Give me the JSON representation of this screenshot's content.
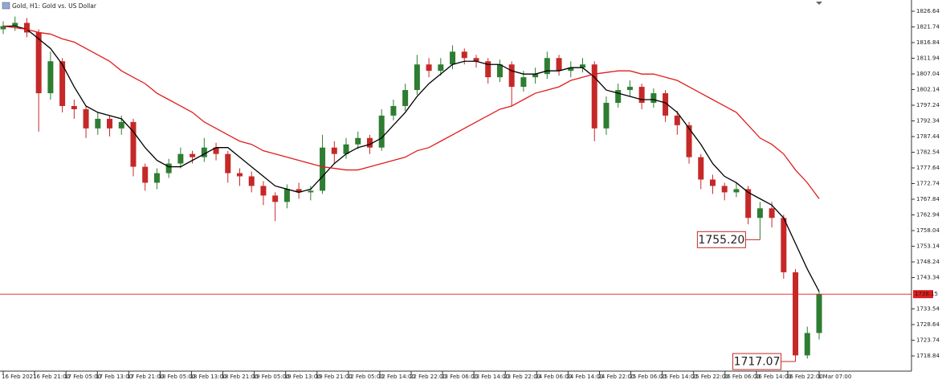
{
  "chart_data": {
    "type": "candlestick",
    "title": "Gold, H1: Gold vs. US Dollar",
    "xlabels": [
      "16 Feb 2021",
      "16 Feb 21:00",
      "17 Feb 05:00",
      "17 Feb 13:00",
      "17 Feb 21:00",
      "18 Feb 05:00",
      "18 Feb 13:00",
      "18 Feb 21:00",
      "19 Feb 05:00",
      "19 Feb 13:00",
      "19 Feb 21:00",
      "22 Feb 05:00",
      "22 Feb 14:00",
      "22 Feb 22:00",
      "23 Feb 06:00",
      "23 Feb 14:00",
      "23 Feb 22:00",
      "24 Feb 06:00",
      "24 Feb 14:00",
      "24 Feb 22:00",
      "25 Feb 06:00",
      "25 Feb 14:00",
      "25 Feb 22:00",
      "26 Feb 06:00",
      "26 Feb 14:00",
      "26 Feb 22:00",
      "1 Mar 07:00"
    ],
    "open": [
      1821,
      1822,
      1823,
      1820,
      1801,
      1811,
      1797,
      1796,
      1790,
      1793,
      1790,
      1792,
      1778,
      1773,
      1776,
      1779,
      1782,
      1781,
      1784,
      1782,
      1776,
      1775,
      1772,
      1769,
      1767,
      1771,
      1770,
      1770.5,
      1784,
      1782,
      1785,
      1787,
      1784,
      1794,
      1797,
      1802,
      1810,
      1808,
      1810,
      1814,
      1812,
      1811,
      1806,
      1810,
      1803,
      1806,
      1807,
      1812,
      1808,
      1809,
      1810,
      1790,
      1798,
      1802,
      1803,
      1798,
      1801,
      1794,
      1791,
      1781,
      1774,
      1772,
      1770,
      1771,
      1762,
      1765,
      1762,
      1745,
      1719,
      1726
    ],
    "high": [
      1823.5,
      1825,
      1824.5,
      1821,
      1814,
      1812,
      1799,
      1797,
      1795,
      1794,
      1794,
      1793,
      1779,
      1777.5,
      1780.5,
      1784,
      1783,
      1787,
      1785.5,
      1783,
      1777.5,
      1776.5,
      1773.5,
      1770,
      1772.5,
      1773,
      1772,
      1788,
      1786,
      1787,
      1789,
      1788,
      1796,
      1799,
      1804,
      1813,
      1812,
      1812,
      1816,
      1815,
      1813,
      1812,
      1811.5,
      1811,
      1808,
      1809,
      1814,
      1813,
      1811,
      1812,
      1811,
      1800,
      1804,
      1805,
      1804,
      1802.5,
      1802,
      1795.5,
      1792,
      1782,
      1775.5,
      1773,
      1773,
      1772,
      1767,
      1767,
      1763,
      1746,
      1728,
      1739
    ],
    "low": [
      1819.5,
      1820.5,
      1818.5,
      1789,
      1799,
      1795,
      1793,
      1787,
      1788,
      1787.5,
      1788,
      1775,
      1770.5,
      1771,
      1774.5,
      1777.5,
      1779,
      1779.5,
      1780,
      1773,
      1772,
      1770,
      1766,
      1761,
      1765,
      1768,
      1767.5,
      1769.5,
      1779,
      1780.5,
      1783.5,
      1782,
      1783,
      1792.5,
      1795.5,
      1800.5,
      1806,
      1806.5,
      1808.5,
      1810,
      1809,
      1804,
      1804.5,
      1797,
      1801.5,
      1804,
      1805.5,
      1806.5,
      1806,
      1807.5,
      1786,
      1788,
      1796.5,
      1800,
      1796,
      1796.5,
      1792,
      1788,
      1779,
      1771,
      1769.5,
      1767.5,
      1768.5,
      1760,
      1755.2,
      1759,
      1743,
      1717.07,
      1718,
      1724
    ],
    "close": [
      1822,
      1823,
      1820,
      1801,
      1811,
      1797,
      1796,
      1790,
      1793,
      1790,
      1792,
      1778,
      1773,
      1776,
      1779,
      1782,
      1781,
      1784,
      1782,
      1776,
      1775,
      1772,
      1769,
      1767,
      1771,
      1770,
      1770.5,
      1784,
      1782,
      1785,
      1787,
      1784,
      1794,
      1797,
      1802,
      1810,
      1808,
      1810,
      1814,
      1812,
      1811,
      1806,
      1810,
      1803,
      1806,
      1807,
      1812,
      1808,
      1809,
      1810,
      1790,
      1798,
      1802,
      1803,
      1798,
      1801,
      1794,
      1791,
      1781,
      1774,
      1772,
      1770,
      1771,
      1762,
      1765,
      1762,
      1745,
      1719,
      1726,
      1738.15
    ],
    "up_color": "#2e7d32",
    "down_color": "#c62828",
    "moving_averages": [
      {
        "color": "#000000",
        "values": [
          1822,
          1822,
          1821,
          1818,
          1815,
          1810,
          1803,
          1797,
          1795,
          1794,
          1793,
          1789,
          1784,
          1780,
          1778,
          1778,
          1780,
          1782,
          1784,
          1784,
          1781,
          1778,
          1775,
          1772,
          1771,
          1770,
          1771,
          1775,
          1779,
          1782,
          1784,
          1785,
          1787,
          1791,
          1795,
          1800,
          1804,
          1807,
          1810,
          1811,
          1811,
          1810,
          1810,
          1808,
          1807,
          1807,
          1808,
          1808,
          1809,
          1809,
          1806,
          1802,
          1801,
          1800,
          1799,
          1799,
          1798,
          1795,
          1790,
          1785,
          1779,
          1775,
          1773,
          1770,
          1768,
          1766,
          1762,
          1754,
          1746,
          1739
        ]
      },
      {
        "color": "#e01c1c",
        "values": [
          1822,
          1821.5,
          1821,
          1820,
          1819.5,
          1818,
          1817,
          1815,
          1813,
          1811,
          1808,
          1806,
          1804,
          1801,
          1799,
          1797,
          1795,
          1792,
          1790,
          1788,
          1786,
          1785,
          1783,
          1782,
          1781,
          1780,
          1779,
          1778,
          1777.5,
          1777,
          1777,
          1778,
          1779,
          1780,
          1781,
          1783,
          1784,
          1786,
          1788,
          1790,
          1792,
          1794,
          1796,
          1797,
          1799,
          1801,
          1802,
          1803,
          1805,
          1806,
          1807,
          1807.5,
          1808,
          1808,
          1807,
          1807,
          1806,
          1805,
          1803,
          1801,
          1799,
          1797,
          1795,
          1791,
          1787,
          1785,
          1782,
          1777,
          1773,
          1768
        ]
      }
    ],
    "price_line": {
      "value": 1738.15,
      "color": "#e01c1c"
    },
    "annotations": [
      {
        "value": 1755.2,
        "label": "1755.20"
      },
      {
        "value": 1717.07,
        "label": "1717.07"
      }
    ],
    "ylim": [
      1714.07,
      1830.16
    ],
    "yticks": [
      1826.64,
      1821.74,
      1816.84,
      1811.94,
      1807.04,
      1802.14,
      1797.24,
      1792.34,
      1787.44,
      1782.54,
      1777.64,
      1772.74,
      1767.84,
      1762.94,
      1758.04,
      1753.14,
      1748.24,
      1743.34,
      1733.54,
      1728.64,
      1723.74,
      1718.84
    ]
  }
}
